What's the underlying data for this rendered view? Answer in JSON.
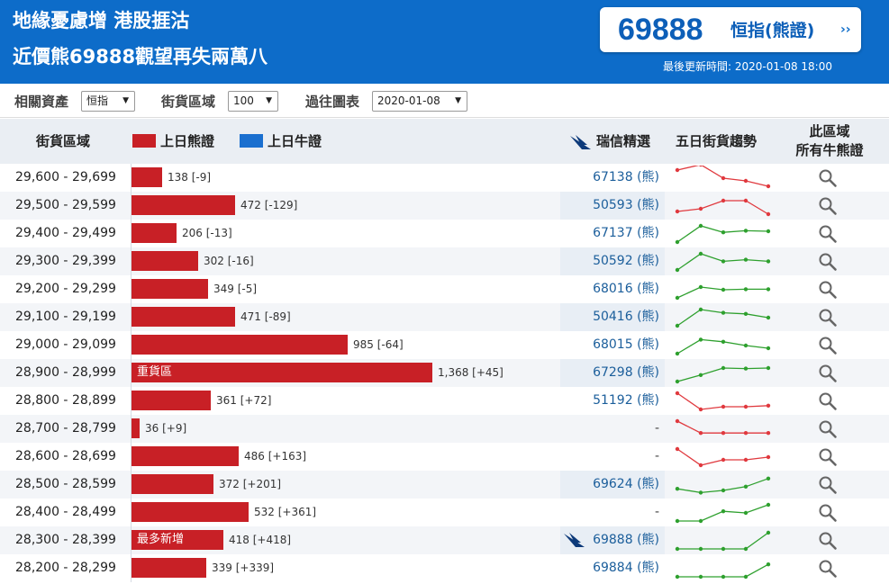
{
  "header": {
    "headline_line1": "地緣憂慮增 港股捱沽",
    "headline_line2": "近價熊69888觀望再失兩萬八",
    "price_value": "69888",
    "price_name": "恒指(熊證)",
    "price_arrow": "››",
    "updated": "最後更新時間: 2020-01-08 18:00"
  },
  "filters": {
    "asset_label": "相關資產",
    "asset_value": "恒指",
    "zone_label": "街貨區域",
    "zone_value": "100",
    "chart_label": "過往圖表",
    "chart_value": "2020-01-08"
  },
  "table_header": {
    "range": "街貨區域",
    "bear_legend": "上日熊證",
    "bull_legend": "上日牛證",
    "ubs_pick": "瑞信精選",
    "trend": "五日街貨趨勢",
    "all_line1": "此區域",
    "all_line2": "所有牛熊證"
  },
  "colors": {
    "header_blue": "#0d6cc9",
    "bear_red": "#c82026",
    "bull_blue": "#1a6fcf",
    "trend_down_red": "#e0393e",
    "trend_up_green": "#2ea02e",
    "link_blue": "#1b5e9b"
  },
  "icons": {
    "search": "magnifier-icon",
    "logo": "credit-suisse-sail-icon"
  },
  "rows": [
    {
      "range": "29,600 - 29,699",
      "value": 138,
      "label": "138 [-9]",
      "tag": "",
      "pick": "67138 (熊)",
      "pick_logo": false,
      "pick_hl": false,
      "trend": "red",
      "trend_values": [
        3,
        4,
        1.5,
        1,
        0
      ]
    },
    {
      "range": "29,500 - 29,599",
      "value": 472,
      "label": "472 [-129]",
      "tag": "",
      "pick": "50593 (熊)",
      "pick_logo": false,
      "pick_hl": true,
      "trend": "red",
      "trend_values": [
        0.5,
        1,
        2.5,
        2.5,
        0
      ]
    },
    {
      "range": "29,400 - 29,499",
      "value": 206,
      "label": "206 [-13]",
      "tag": "",
      "pick": "67137 (熊)",
      "pick_logo": false,
      "pick_hl": false,
      "trend": "green",
      "trend_values": [
        0,
        3,
        1.8,
        2.1,
        2
      ]
    },
    {
      "range": "29,300 - 29,399",
      "value": 302,
      "label": "302 [-16]",
      "tag": "",
      "pick": "50592 (熊)",
      "pick_logo": false,
      "pick_hl": true,
      "trend": "green",
      "trend_values": [
        0,
        3,
        1.6,
        1.9,
        1.6
      ]
    },
    {
      "range": "29,200 - 29,299",
      "value": 349,
      "label": "349 [-5]",
      "tag": "",
      "pick": "68016 (熊)",
      "pick_logo": false,
      "pick_hl": false,
      "trend": "green",
      "trend_values": [
        0,
        2,
        1.5,
        1.6,
        1.6
      ]
    },
    {
      "range": "29,100 - 29,199",
      "value": 471,
      "label": "471 [-89]",
      "tag": "",
      "pick": "50416 (熊)",
      "pick_logo": false,
      "pick_hl": true,
      "trend": "green",
      "trend_values": [
        0,
        3,
        2.4,
        2.2,
        1.5
      ]
    },
    {
      "range": "29,000 - 29,099",
      "value": 985,
      "label": "985 [-64]",
      "tag": "",
      "pick": "68015 (熊)",
      "pick_logo": false,
      "pick_hl": false,
      "trend": "green",
      "trend_values": [
        0,
        2.6,
        2.2,
        1.5,
        1
      ]
    },
    {
      "range": "28,900 - 28,999",
      "value": 1368,
      "label": "1,368 [+45]",
      "tag": "重貨區",
      "pick": "67298 (熊)",
      "pick_logo": false,
      "pick_hl": true,
      "trend": "green",
      "trend_values": [
        0,
        1.2,
        2.5,
        2.4,
        2.5
      ]
    },
    {
      "range": "28,800 - 28,899",
      "value": 361,
      "label": "361 [+72]",
      "tag": "",
      "pick": "51192 (熊)",
      "pick_logo": false,
      "pick_hl": false,
      "trend": "red",
      "trend_values": [
        3,
        0,
        0.5,
        0.5,
        0.7
      ]
    },
    {
      "range": "28,700 - 28,799",
      "value": 36,
      "label": "36 [+9]",
      "tag": "",
      "pick": "-",
      "pick_logo": false,
      "pick_hl": false,
      "trend": "red",
      "trend_values": [
        3,
        0.8,
        0.8,
        0.8,
        0.8
      ]
    },
    {
      "range": "28,600 - 28,699",
      "value": 486,
      "label": "486 [+163]",
      "tag": "",
      "pick": "-",
      "pick_logo": false,
      "pick_hl": false,
      "trend": "red",
      "trend_values": [
        3,
        0,
        1,
        1,
        1.5
      ]
    },
    {
      "range": "28,500 - 28,599",
      "value": 372,
      "label": "372 [+201]",
      "tag": "",
      "pick": "69624 (熊)",
      "pick_logo": false,
      "pick_hl": true,
      "trend": "green",
      "trend_values": [
        0.8,
        0.1,
        0.5,
        1.2,
        2.7
      ]
    },
    {
      "range": "28,400 - 28,499",
      "value": 532,
      "label": "532 [+361]",
      "tag": "",
      "pick": "-",
      "pick_logo": false,
      "pick_hl": false,
      "trend": "green",
      "trend_values": [
        0,
        0,
        1.8,
        1.5,
        3
      ]
    },
    {
      "range": "28,300 - 28,399",
      "value": 418,
      "label": "418 [+418]",
      "tag": "最多新增",
      "pick": "69888 (熊)",
      "pick_logo": true,
      "pick_hl": true,
      "trend": "green",
      "trend_values": [
        0,
        0,
        0,
        0,
        3
      ]
    },
    {
      "range": "28,200 - 28,299",
      "value": 339,
      "label": "339 [+339]",
      "tag": "",
      "pick": "69884 (熊)",
      "pick_logo": false,
      "pick_hl": false,
      "trend": "green",
      "trend_values": [
        0,
        0,
        0,
        0,
        2.3
      ]
    }
  ]
}
